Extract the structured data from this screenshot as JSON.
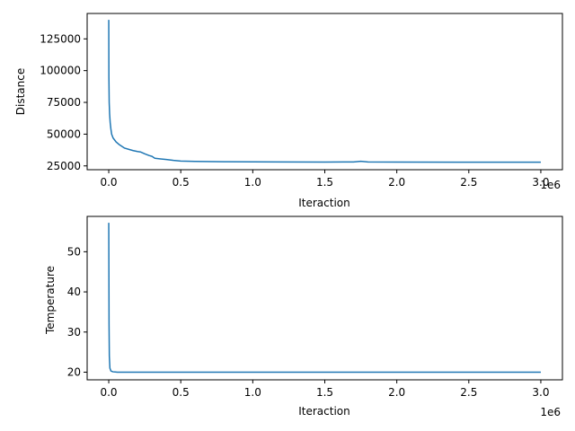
{
  "chart_data": [
    {
      "type": "line",
      "xlabel": "Iteraction",
      "ylabel": "Distance",
      "x_offset_text": "1e6",
      "xlim": [
        -0.15,
        3.15
      ],
      "ylim": [
        22000,
        145000
      ],
      "xticks": [
        0.0,
        0.5,
        1.0,
        1.5,
        2.0,
        2.5,
        3.0
      ],
      "xtick_labels": [
        "0.0",
        "0.5",
        "1.0",
        "1.5",
        "2.0",
        "2.5",
        "3.0"
      ],
      "yticks": [
        25000,
        50000,
        75000,
        100000,
        125000
      ],
      "ytick_labels": [
        "25000",
        "50000",
        "75000",
        "100000",
        "125000"
      ],
      "color": "#1f77b4",
      "series": [
        {
          "x": [
            0.0,
            0.001,
            0.003,
            0.006,
            0.01,
            0.015,
            0.02,
            0.03,
            0.04,
            0.05,
            0.07,
            0.09,
            0.11,
            0.14,
            0.17,
            0.2,
            0.22,
            0.25,
            0.28,
            0.3,
            0.32,
            0.36,
            0.4,
            0.45,
            0.5,
            0.6,
            0.8,
            1.0,
            1.2,
            1.5,
            1.7,
            1.75,
            1.8,
            2.0,
            2.5,
            3.0
          ],
          "y": [
            140000,
            95000,
            75000,
            66000,
            59000,
            54000,
            50000,
            47000,
            45500,
            44000,
            42000,
            40500,
            39000,
            38000,
            37000,
            36300,
            36000,
            34500,
            33200,
            32500,
            31000,
            30500,
            30000,
            29300,
            28800,
            28500,
            28300,
            28200,
            28100,
            28000,
            28100,
            28600,
            28100,
            28000,
            27900,
            27900
          ]
        }
      ]
    },
    {
      "type": "line",
      "xlabel": "Iteraction",
      "ylabel": "Temperature",
      "x_offset_text": "1e6",
      "xlim": [
        -0.15,
        3.15
      ],
      "ylim": [
        18.1,
        58.8
      ],
      "xticks": [
        0.0,
        0.5,
        1.0,
        1.5,
        2.0,
        2.5,
        3.0
      ],
      "xtick_labels": [
        "0.0",
        "0.5",
        "1.0",
        "1.5",
        "2.0",
        "2.5",
        "3.0"
      ],
      "yticks": [
        20,
        30,
        40,
        50
      ],
      "ytick_labels": [
        "20",
        "30",
        "40",
        "50"
      ],
      "color": "#1f77b4",
      "series": [
        {
          "x": [
            0.0,
            0.001,
            0.002,
            0.004,
            0.008,
            0.015,
            0.03,
            0.06,
            0.1,
            0.3,
            0.5,
            1.0,
            1.5,
            2.0,
            2.5,
            3.0
          ],
          "y": [
            57.2,
            45.0,
            32.0,
            24.0,
            21.0,
            20.3,
            20.1,
            20.0,
            20.0,
            20.0,
            20.0,
            20.0,
            20.0,
            20.0,
            20.0,
            20.0
          ]
        }
      ]
    }
  ]
}
